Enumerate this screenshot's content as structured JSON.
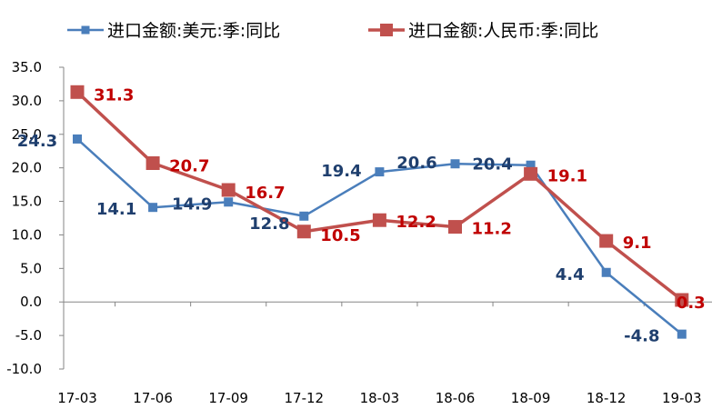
{
  "chart_data": {
    "type": "line",
    "title": "",
    "xlabel": "",
    "ylabel": "",
    "categories": [
      "17-03",
      "17-06",
      "17-09",
      "17-12",
      "18-03",
      "18-06",
      "18-09",
      "18-12",
      "19-03"
    ],
    "ylim": [
      -10.0,
      35.0
    ],
    "ytick_step": 5.0,
    "yticks": [
      "35.0",
      "30.0",
      "25.0",
      "20.0",
      "15.0",
      "10.0",
      "5.0",
      "0.0",
      "-5.0",
      "-10.0"
    ],
    "grid": false,
    "legend_position": "top",
    "series": [
      {
        "name": "进口金额:美元:季:同比",
        "color": "#4a7ebb",
        "label_color": "#1f3f6e",
        "marker": "square",
        "values": [
          24.3,
          14.1,
          14.9,
          12.8,
          19.4,
          20.6,
          20.4,
          4.4,
          -4.8
        ],
        "labels": [
          "24.3",
          "14.1",
          "14.9",
          "12.8",
          "19.4",
          "20.6",
          "20.4",
          "4.4",
          "-4.8"
        ]
      },
      {
        "name": "进口金额:人民币:季:同比",
        "color": "#c0504d",
        "label_color": "#c00000",
        "marker": "square",
        "values": [
          31.3,
          20.7,
          16.7,
          10.5,
          12.2,
          11.2,
          19.1,
          9.1,
          0.3
        ],
        "labels": [
          "31.3",
          "20.7",
          "16.7",
          "10.5",
          "12.2",
          "11.2",
          "19.1",
          "9.1",
          "0.3"
        ]
      }
    ]
  }
}
